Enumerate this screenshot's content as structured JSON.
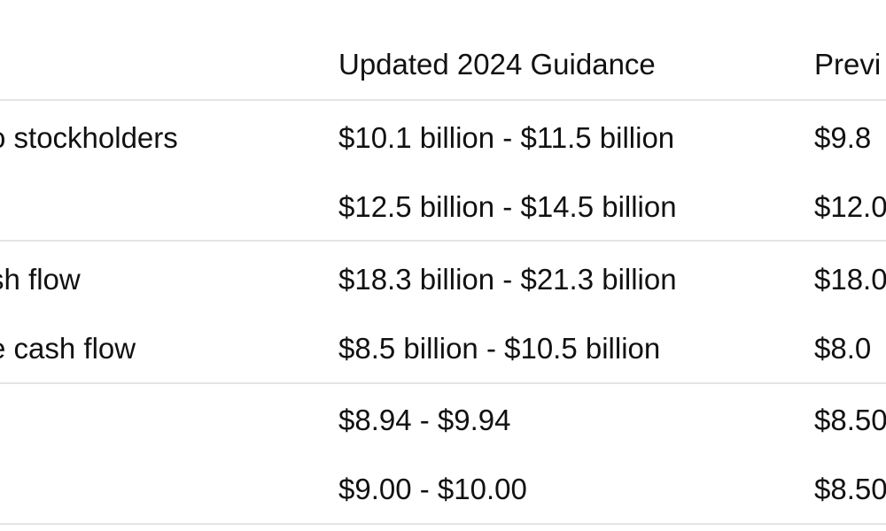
{
  "table": {
    "columns": [
      "",
      "Updated 2024 Guidance",
      "Previ"
    ],
    "rows": [
      [
        "o stockholders",
        "$10.1 billion - $11.5 billion",
        "$9.8"
      ],
      [
        "",
        "$12.5 billion - $14.5 billion",
        "$12.0"
      ],
      [
        "sh flow",
        "$18.3 billion - $21.3 billion",
        "$18.0"
      ],
      [
        "e cash flow",
        "$8.5 billion - $10.5 billion",
        "$8.0"
      ],
      [
        "",
        "$8.94 - $9.94",
        "$8.50"
      ],
      [
        "",
        "$9.00 - $10.00",
        "$8.50"
      ]
    ]
  },
  "colors": {
    "text": "#111111",
    "rule": "#e4e4e4",
    "background": "#ffffff"
  }
}
